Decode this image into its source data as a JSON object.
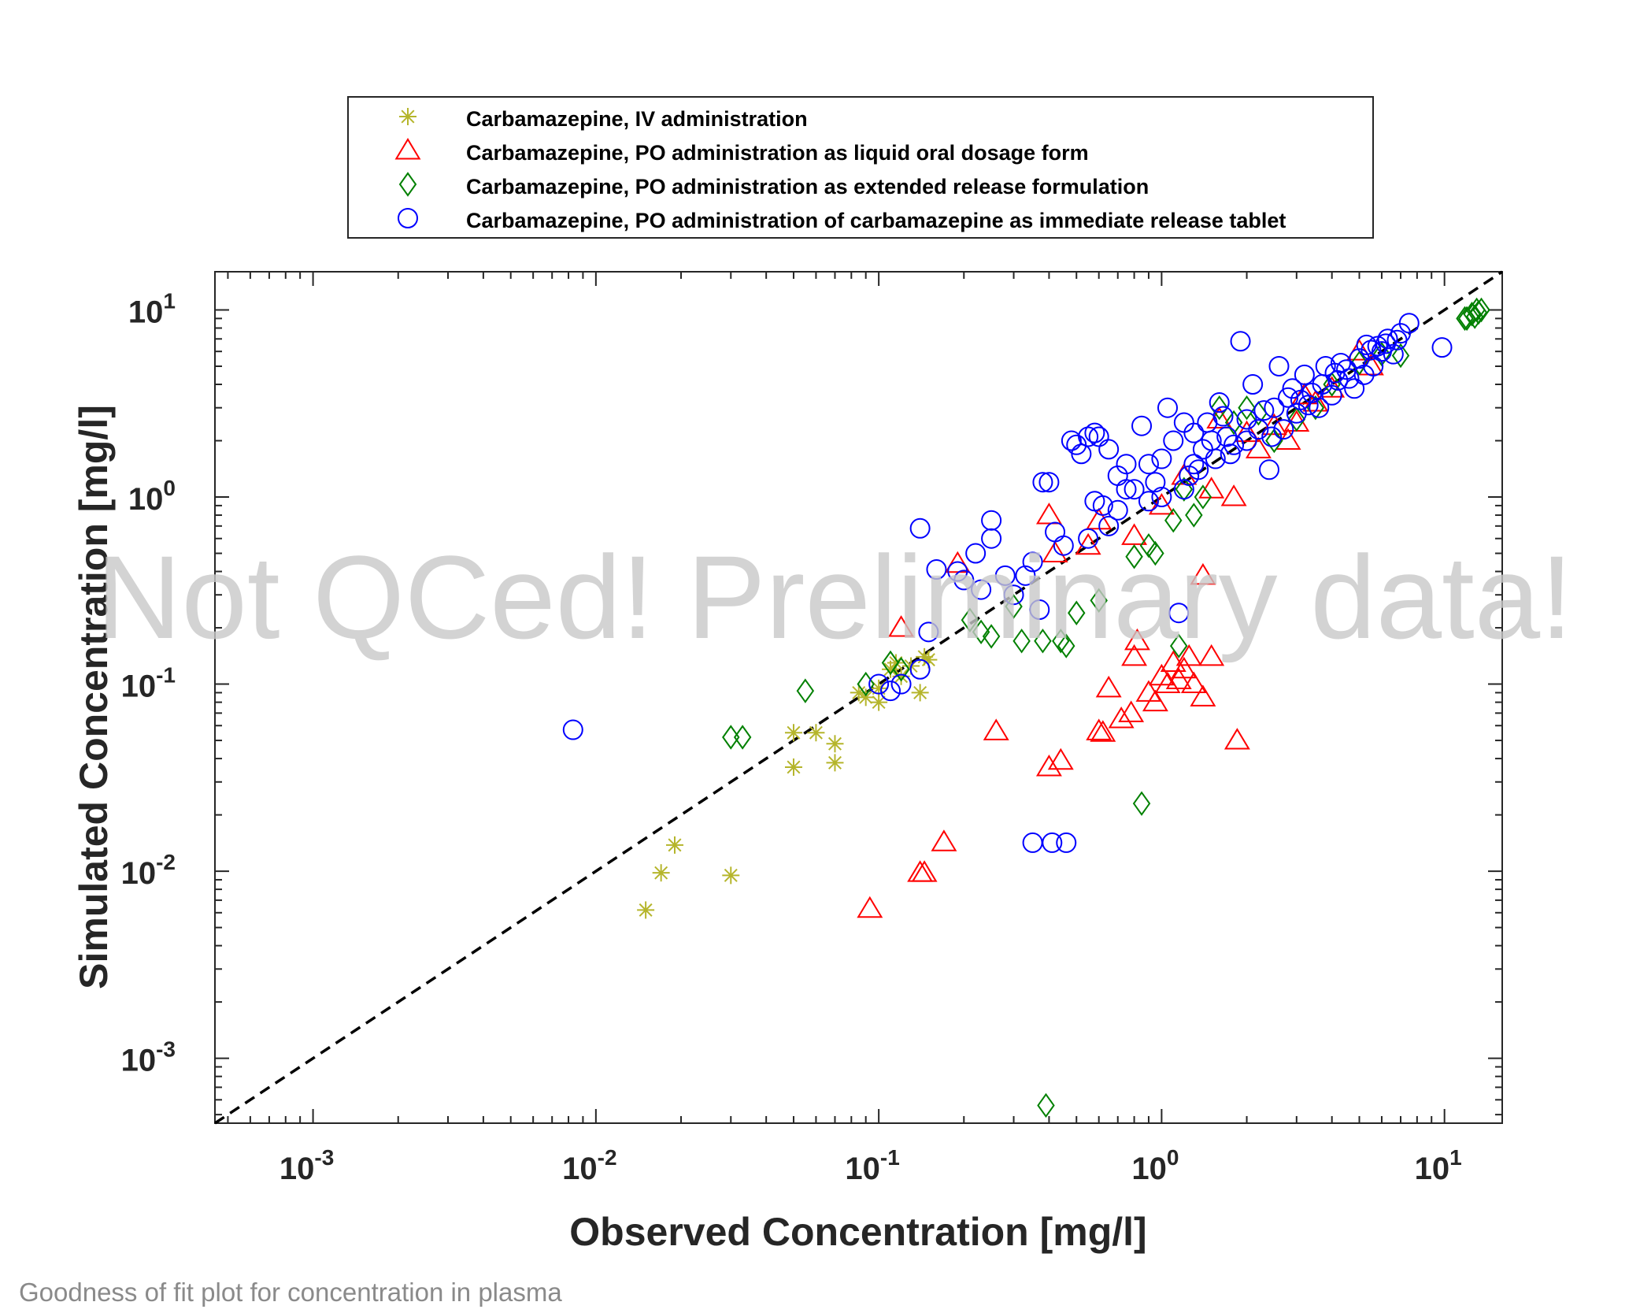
{
  "chart_data": {
    "type": "scatter",
    "title": "",
    "xlabel": "Observed Concentration [mg/l]",
    "ylabel": "Simulated Concentration [mg/l]",
    "xscale": "log",
    "yscale": "log",
    "xlim": [
      0.00045,
      16
    ],
    "ylim": [
      0.00045,
      16
    ],
    "tick_labels": [
      "10-3",
      "10-2",
      "10-1",
      "100",
      "101"
    ],
    "grid": false,
    "legend_placement": "top-center, outside plot",
    "identity_line": true,
    "watermark": "Not QCed! Preliminary data!",
    "caption": "Goodness of fit plot for concentration in plasma",
    "colors": {
      "iv": "#b5b52b",
      "liquid": "#ff0000",
      "extended": "#008000",
      "immediate": "#0000ff",
      "identity": "#000000"
    },
    "series": [
      {
        "name": "Carbamazepine, IV administration",
        "marker": "asterisk",
        "color": "#b5b52b",
        "points": [
          [
            0.015,
            0.0062
          ],
          [
            0.017,
            0.0098
          ],
          [
            0.019,
            0.0138
          ],
          [
            0.03,
            0.0095
          ],
          [
            0.05,
            0.036
          ],
          [
            0.05,
            0.055
          ],
          [
            0.06,
            0.055
          ],
          [
            0.07,
            0.038
          ],
          [
            0.07,
            0.048
          ],
          [
            0.085,
            0.09
          ],
          [
            0.09,
            0.085
          ],
          [
            0.1,
            0.08
          ],
          [
            0.1,
            0.095
          ],
          [
            0.11,
            0.12
          ],
          [
            0.115,
            0.13
          ],
          [
            0.12,
            0.11
          ],
          [
            0.13,
            0.125
          ],
          [
            0.14,
            0.09
          ],
          [
            0.145,
            0.14
          ],
          [
            0.15,
            0.135
          ]
        ]
      },
      {
        "name": "Carbamazepine, PO administration as liquid oral dosage form",
        "marker": "triangle",
        "color": "#ff0000",
        "points": [
          [
            0.093,
            0.0063
          ],
          [
            0.14,
            0.0098
          ],
          [
            0.145,
            0.0098
          ],
          [
            0.17,
            0.0143
          ],
          [
            0.12,
            0.2
          ],
          [
            0.19,
            0.44
          ],
          [
            0.26,
            0.056
          ],
          [
            0.4,
            0.036
          ],
          [
            0.44,
            0.039
          ],
          [
            0.6,
            0.056
          ],
          [
            0.62,
            0.055
          ],
          [
            0.65,
            0.095
          ],
          [
            0.72,
            0.065
          ],
          [
            0.78,
            0.07
          ],
          [
            0.8,
            0.14
          ],
          [
            0.82,
            0.17
          ],
          [
            0.9,
            0.09
          ],
          [
            0.95,
            0.08
          ],
          [
            1.0,
            0.11
          ],
          [
            1.05,
            0.1
          ],
          [
            1.1,
            0.13
          ],
          [
            1.15,
            0.105
          ],
          [
            1.2,
            0.12
          ],
          [
            1.25,
            0.14
          ],
          [
            1.3,
            0.1
          ],
          [
            1.4,
            0.085
          ],
          [
            1.5,
            0.14
          ],
          [
            1.85,
            0.05
          ],
          [
            0.4,
            0.8
          ],
          [
            0.42,
            0.5
          ],
          [
            0.55,
            0.55
          ],
          [
            0.6,
            0.75
          ],
          [
            0.8,
            0.62
          ],
          [
            1.0,
            0.9
          ],
          [
            1.2,
            1.3
          ],
          [
            1.4,
            0.38
          ],
          [
            1.5,
            1.1
          ],
          [
            1.6,
            2.6
          ],
          [
            1.8,
            1.0
          ],
          [
            2.0,
            2.2
          ],
          [
            2.5,
            2.4
          ],
          [
            3.0,
            2.5
          ],
          [
            3.5,
            3.2
          ],
          [
            4.0,
            3.8
          ],
          [
            5.0,
            6.0
          ],
          [
            5.5,
            5.0
          ],
          [
            2.2,
            1.8
          ],
          [
            2.8,
            2.0
          ],
          [
            3.2,
            3.5
          ]
        ]
      },
      {
        "name": "Carbamazepine, PO administration as extended release formulation",
        "marker": "diamond",
        "color": "#008000",
        "points": [
          [
            0.03,
            0.052
          ],
          [
            0.033,
            0.052
          ],
          [
            0.055,
            0.092
          ],
          [
            0.09,
            0.1
          ],
          [
            0.11,
            0.13
          ],
          [
            0.12,
            0.12
          ],
          [
            0.21,
            0.22
          ],
          [
            0.23,
            0.19
          ],
          [
            0.25,
            0.18
          ],
          [
            0.3,
            0.26
          ],
          [
            0.32,
            0.17
          ],
          [
            0.38,
            0.17
          ],
          [
            0.44,
            0.17
          ],
          [
            0.46,
            0.16
          ],
          [
            0.5,
            0.24
          ],
          [
            0.6,
            0.28
          ],
          [
            0.8,
            0.48
          ],
          [
            0.85,
            0.023
          ],
          [
            0.39,
            0.00056
          ],
          [
            0.9,
            0.55
          ],
          [
            0.95,
            0.5
          ],
          [
            1.1,
            0.75
          ],
          [
            1.15,
            0.16
          ],
          [
            1.2,
            1.1
          ],
          [
            1.3,
            0.8
          ],
          [
            1.4,
            1.0
          ],
          [
            1.6,
            3.0
          ],
          [
            1.8,
            2.5
          ],
          [
            2.0,
            3.0
          ],
          [
            2.2,
            2.8
          ],
          [
            2.5,
            2.0
          ],
          [
            3.0,
            2.6
          ],
          [
            3.5,
            3.0
          ],
          [
            4.0,
            4.0
          ],
          [
            5.0,
            5.2
          ],
          [
            6.0,
            5.8
          ],
          [
            7.0,
            5.7
          ],
          [
            12.0,
            9.0
          ],
          [
            12.5,
            9.5
          ],
          [
            13.0,
            10.0
          ],
          [
            13.5,
            10.0
          ],
          [
            12.8,
            9.2
          ],
          [
            13.2,
            9.7
          ],
          [
            11.8,
            9.0
          ]
        ]
      },
      {
        "name": "Carbamazepine, PO administration of carbamazepine as immediate release tablet",
        "marker": "circle",
        "color": "#0000ff",
        "points": [
          [
            0.0083,
            0.057
          ],
          [
            0.1,
            0.1
          ],
          [
            0.11,
            0.092
          ],
          [
            0.12,
            0.1
          ],
          [
            0.14,
            0.12
          ],
          [
            0.15,
            0.19
          ],
          [
            0.14,
            0.68
          ],
          [
            0.16,
            0.41
          ],
          [
            0.19,
            0.4
          ],
          [
            0.2,
            0.36
          ],
          [
            0.22,
            0.5
          ],
          [
            0.23,
            0.32
          ],
          [
            0.25,
            0.6
          ],
          [
            0.25,
            0.75
          ],
          [
            0.28,
            0.38
          ],
          [
            0.3,
            0.3
          ],
          [
            0.33,
            0.38
          ],
          [
            0.35,
            0.45
          ],
          [
            0.37,
            0.25
          ],
          [
            0.38,
            1.2
          ],
          [
            0.4,
            1.2
          ],
          [
            0.42,
            0.65
          ],
          [
            0.45,
            0.55
          ],
          [
            0.48,
            2.0
          ],
          [
            0.5,
            1.9
          ],
          [
            0.52,
            1.7
          ],
          [
            0.55,
            2.1
          ],
          [
            0.58,
            2.2
          ],
          [
            0.6,
            2.1
          ],
          [
            0.62,
            0.9
          ],
          [
            0.65,
            0.7
          ],
          [
            0.7,
            1.3
          ],
          [
            0.75,
            1.5
          ],
          [
            0.8,
            1.1
          ],
          [
            0.85,
            2.4
          ],
          [
            0.9,
            1.5
          ],
          [
            0.95,
            1.2
          ],
          [
            1.0,
            1.6
          ],
          [
            1.05,
            3.0
          ],
          [
            1.1,
            2.0
          ],
          [
            1.15,
            0.24
          ],
          [
            1.2,
            2.5
          ],
          [
            1.3,
            1.5
          ],
          [
            1.4,
            1.8
          ],
          [
            1.5,
            2.0
          ],
          [
            1.6,
            3.2
          ],
          [
            1.7,
            2.1
          ],
          [
            1.8,
            1.9
          ],
          [
            1.9,
            6.8
          ],
          [
            2.0,
            2.6
          ],
          [
            2.1,
            4.0
          ],
          [
            2.2,
            2.3
          ],
          [
            2.4,
            1.4
          ],
          [
            2.5,
            3.0
          ],
          [
            2.6,
            5.0
          ],
          [
            2.8,
            3.4
          ],
          [
            3.0,
            2.8
          ],
          [
            3.2,
            4.5
          ],
          [
            3.4,
            3.6
          ],
          [
            3.6,
            3.0
          ],
          [
            3.8,
            5.0
          ],
          [
            4.0,
            3.5
          ],
          [
            4.2,
            4.2
          ],
          [
            4.5,
            4.8
          ],
          [
            4.8,
            3.8
          ],
          [
            5.0,
            5.5
          ],
          [
            5.3,
            6.5
          ],
          [
            5.6,
            5.0
          ],
          [
            6.0,
            6.0
          ],
          [
            6.3,
            7.0
          ],
          [
            6.6,
            5.8
          ],
          [
            7.0,
            7.5
          ],
          [
            7.5,
            8.5
          ],
          [
            9.8,
            6.3
          ],
          [
            0.35,
            0.0142
          ],
          [
            0.41,
            0.0142
          ],
          [
            0.46,
            0.0142
          ],
          [
            1.2,
            1.1
          ],
          [
            1.3,
            2.2
          ],
          [
            1.45,
            2.5
          ],
          [
            1.55,
            1.6
          ],
          [
            1.65,
            2.7
          ],
          [
            1.75,
            1.7
          ],
          [
            2.3,
            2.9
          ],
          [
            2.7,
            2.3
          ],
          [
            2.9,
            3.8
          ],
          [
            3.3,
            3.1
          ],
          [
            3.7,
            4.0
          ],
          [
            4.3,
            5.2
          ],
          [
            4.6,
            4.3
          ],
          [
            5.2,
            4.5
          ],
          [
            5.8,
            6.4
          ],
          [
            6.8,
            6.9
          ],
          [
            0.9,
            0.95
          ],
          [
            1.0,
            1.0
          ],
          [
            0.7,
            0.85
          ],
          [
            0.55,
            0.6
          ],
          [
            0.65,
            1.8
          ],
          [
            0.58,
            0.95
          ],
          [
            0.75,
            1.1
          ],
          [
            1.25,
            1.3
          ],
          [
            1.35,
            1.4
          ],
          [
            2.0,
            2.0
          ],
          [
            2.45,
            2.1
          ],
          [
            3.1,
            3.3
          ],
          [
            4.1,
            4.6
          ],
          [
            5.5,
            6.1
          ],
          [
            6.2,
            6.6
          ]
        ]
      }
    ]
  }
}
